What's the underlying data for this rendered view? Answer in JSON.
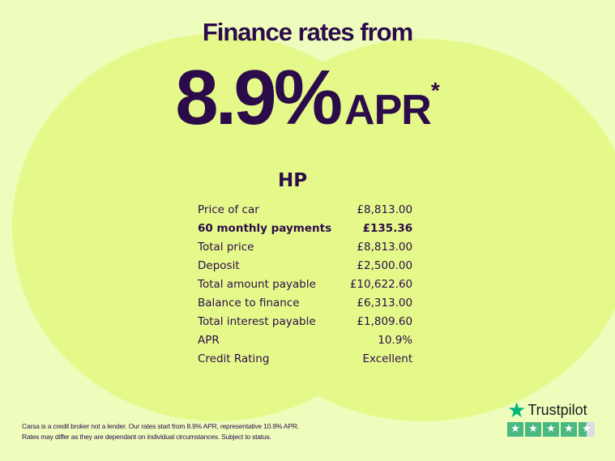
{
  "headline": {
    "line1": "Finance rates from",
    "rate": "8.9%",
    "suffix": "APR",
    "asterisk": "*"
  },
  "product": {
    "title": "HP"
  },
  "rows": [
    {
      "label": "Price of car",
      "value": "£8,813.00",
      "bold": false
    },
    {
      "label": "60 monthly payments",
      "value": "£135.36",
      "bold": true
    },
    {
      "label": "Total price",
      "value": "£8,813.00",
      "bold": false
    },
    {
      "label": "Deposit",
      "value": "£2,500.00",
      "bold": false
    },
    {
      "label": "Total amount payable",
      "value": "£10,622.60",
      "bold": false
    },
    {
      "label": "Balance to finance",
      "value": "£6,313.00",
      "bold": false
    },
    {
      "label": "Total interest payable",
      "value": "£1,809.60",
      "bold": false
    },
    {
      "label": "APR",
      "value": "10.9%",
      "bold": false
    },
    {
      "label": "Credit Rating",
      "value": "Excellent",
      "bold": false
    }
  ],
  "disclaimer": {
    "line1": "Carsa is a credit broker not a lender. Our rates start from 8.9% APR, representative 10.9% APR.",
    "line2": "Rates may differ as they are dependant on individual circumstances. Subject to status."
  },
  "trustpilot": {
    "name": "Trustpilot",
    "rating_stars": 4.5,
    "icon": "star-icon",
    "color": "#00b67a"
  },
  "colors": {
    "background": "#eefcbc",
    "circles": "#e5f98a",
    "text": "#2b0b4a"
  }
}
